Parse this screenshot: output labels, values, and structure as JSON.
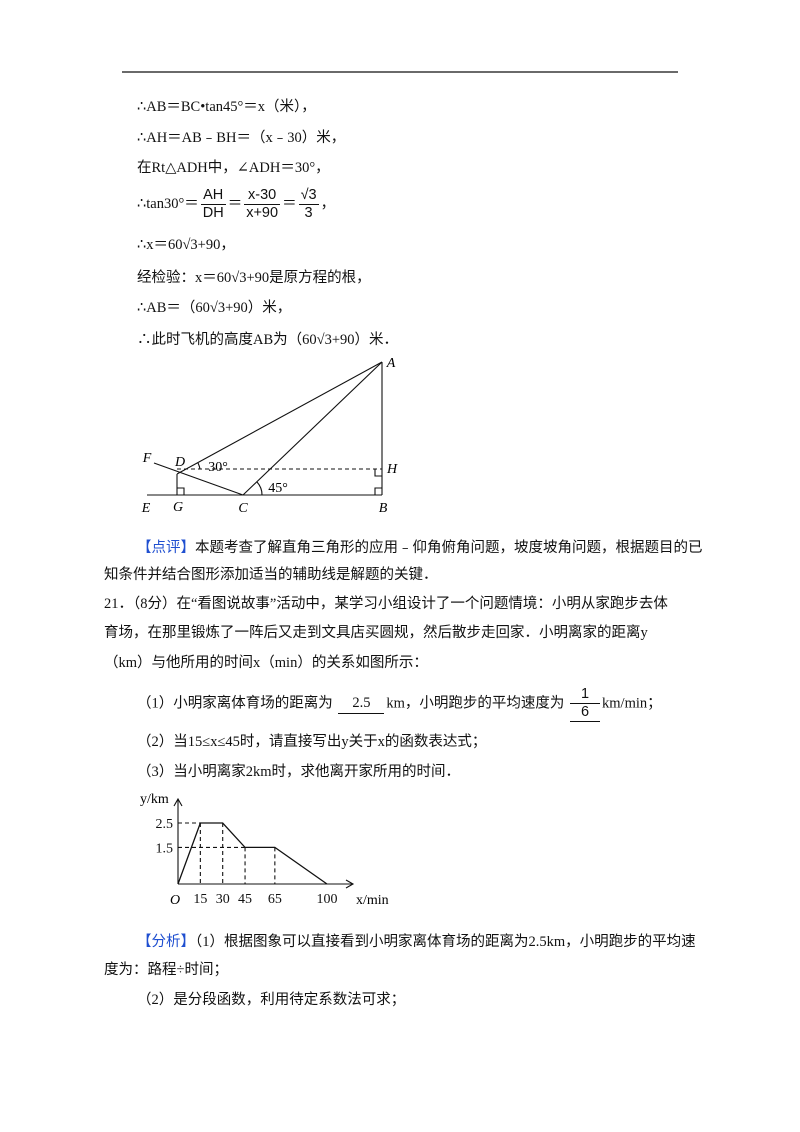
{
  "solution_lines": [
    [
      "∴AB＝BC•tan45°＝x（米），"
    ],
    [
      "∴AH＝AB﹣BH＝（x﹣30）米，"
    ],
    [
      "在Rt△ADH中，∠ADH＝30°，"
    ],
    [
      "∴tan30°＝",
      {
        "num": "AH",
        "den": "DH"
      },
      "＝",
      {
        "num": "x-30",
        "den": "x+90"
      },
      "＝",
      {
        "num": "√3",
        "den": "3"
      },
      "，"
    ],
    [
      "∴x＝60√3+90，"
    ],
    [
      "经检验：x＝60√3+90是原方程的根，"
    ],
    [
      "∴AB＝（60√3+90）米，"
    ],
    [
      "∴此时飞机的高度AB为（60√3+90）米．"
    ]
  ],
  "diagram": {
    "points": [
      "A",
      "D",
      "H",
      "F",
      "E",
      "G",
      "C",
      "B"
    ],
    "angles": [
      "30°",
      "45°"
    ]
  },
  "comment": {
    "tag": "【点评】",
    "lines": [
      "本题考查了解直角三角形的应用﹣仰角俯角问题，坡度坡角问题，根据题目的已",
      "知条件并结合图形添加适当的辅助线是解题的关键．"
    ]
  },
  "problem": {
    "lines": [
      "21．（8分）在“看图说故事”活动中，某学习小组设计了一个问题情境：小明从家跑步去体",
      "育场，在那里锻炼了一阵后又走到文具店买圆规，然后散步走回家．小明离家的距离y",
      "（km）与他所用的时间x（min）的关系如图所示："
    ],
    "questions": [
      [
        "（1）小明家离体育场的距离为 ",
        {
          "blank": "2.5"
        },
        "km，小明跑步的平均速度为 ",
        {
          "num": "1",
          "den": "6",
          "underline": true
        },
        "km/min；"
      ],
      [
        "（2）当15≤x≤45时，请直接写出y关于x的函数表达式；"
      ],
      [
        "（3）当小明离家2km时，求他离开家所用的时间．"
      ]
    ]
  },
  "graph": {
    "y_label": "y/km",
    "x_label": "x/min",
    "origin": "O",
    "xticks": [
      15,
      30,
      45,
      65,
      100
    ],
    "yticks": [
      1.5,
      2.5
    ],
    "x": [
      0,
      15,
      30,
      45,
      65,
      100
    ],
    "y": [
      0,
      2.5,
      2.5,
      1.5,
      1.5,
      0
    ]
  },
  "analysis": {
    "tag": "【分析】",
    "lines": [
      "（1）根据图象可以直接看到小明家离体育场的距离为2.5km，小明跑步的平均速",
      "度为：路程÷时间；",
      "（2）是分段函数，利用待定系数法可求；"
    ]
  }
}
